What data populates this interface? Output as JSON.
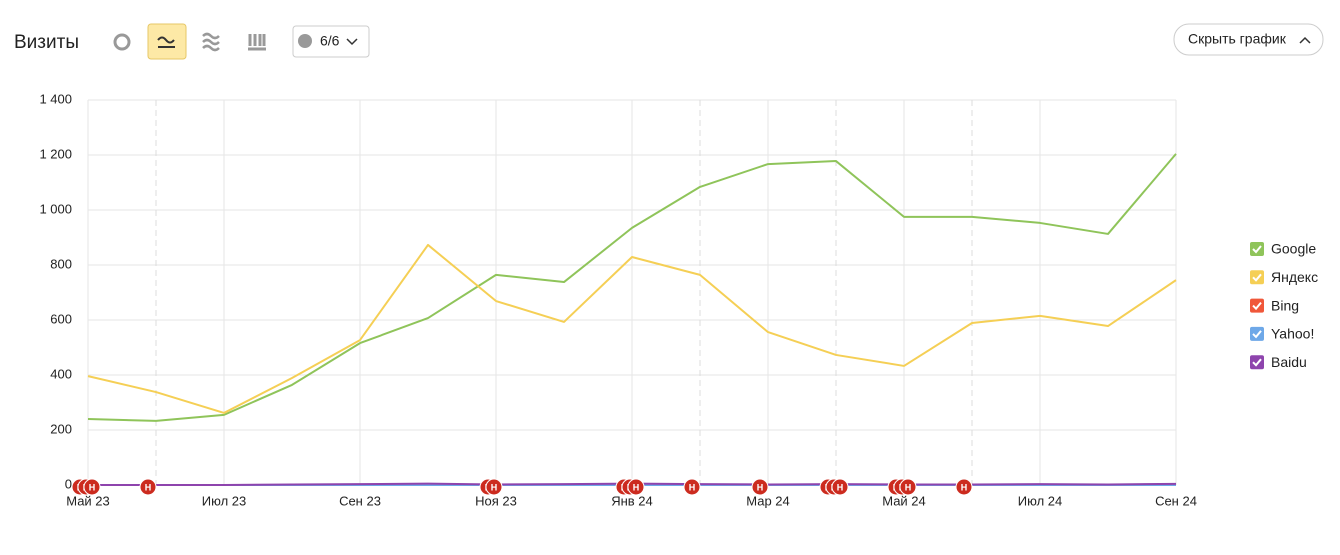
{
  "toolbar": {
    "title": "Визиты",
    "segments": "6/6",
    "hide_button": "Скрыть график"
  },
  "chart_data": {
    "type": "line",
    "categories": [
      "Май 23",
      null,
      "Июл 23",
      null,
      "Сен 23",
      null,
      "Ноя 23",
      null,
      "Янв 24",
      null,
      "Мар 24",
      null,
      "Май 24",
      null,
      "Июл 24",
      null,
      "Сен 24"
    ],
    "series": [
      {
        "name": "Google",
        "color": "#8fc45a",
        "values": [
          240,
          233,
          255,
          364,
          516,
          607,
          764,
          738,
          935,
          1084,
          1167,
          1178,
          975,
          975,
          953,
          913,
          1204
        ]
      },
      {
        "name": "Яндекс",
        "color": "#f5cf55",
        "values": [
          396,
          338,
          262,
          389,
          527,
          873,
          669,
          593,
          829,
          764,
          556,
          473,
          433,
          589,
          615,
          578,
          745
        ]
      },
      {
        "name": "Bing",
        "color": "#f0573a",
        "values": [
          0,
          0,
          0,
          0,
          0,
          0,
          0,
          0,
          0,
          0,
          0,
          0,
          0,
          0,
          0,
          0,
          0
        ]
      },
      {
        "name": "Yahoo!",
        "color": "#6ea8e8",
        "values": [
          0,
          0,
          0,
          0,
          0,
          0,
          0,
          0,
          0,
          0,
          0,
          0,
          0,
          0,
          0,
          0,
          0
        ]
      },
      {
        "name": "Baidu",
        "color": "#8e44ad",
        "values": [
          0,
          0,
          0,
          2,
          3,
          5,
          2,
          3,
          5,
          3,
          2,
          3,
          2,
          2,
          3,
          2,
          4
        ]
      }
    ],
    "ylim": [
      0,
      1400
    ],
    "yticks": [
      0,
      200,
      400,
      600,
      800,
      {
        "value": 1000,
        "label": "1 000"
      },
      {
        "value": 1200,
        "label": "1 200"
      },
      {
        "value": 1400,
        "label": "1 400"
      }
    ],
    "grid": true,
    "legend": "right",
    "notes": {
      "label": "Н",
      "color": "#cc2b1f",
      "at": [
        0,
        0,
        0,
        1,
        6,
        6,
        8,
        8,
        8,
        9,
        10,
        11,
        11,
        11,
        12,
        12,
        12,
        13
      ]
    }
  }
}
